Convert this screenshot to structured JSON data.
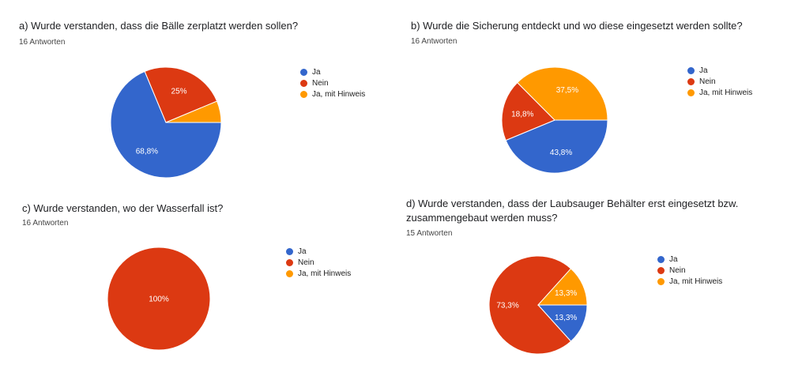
{
  "chart_data": [
    {
      "type": "pie",
      "title": "a) Wurde verstanden, dass die Bälle zerplatzt werden sollen?",
      "subtitle": "16 Antworten",
      "categories": [
        "Ja",
        "Nein",
        "Ja, mit Hinweis"
      ],
      "values": [
        68.8,
        25,
        6.3
      ],
      "labels": [
        "68,8%",
        "25%",
        ""
      ],
      "legend": "right"
    },
    {
      "type": "pie",
      "title": "b) Wurde die Sicherung entdeckt und wo diese eingesetzt werden sollte?",
      "subtitle": "16 Antworten",
      "categories": [
        "Ja",
        "Nein",
        "Ja, mit Hinweis"
      ],
      "values": [
        43.8,
        18.8,
        37.5
      ],
      "labels": [
        "43,8%",
        "18,8%",
        "37,5%"
      ],
      "legend": "right"
    },
    {
      "type": "pie",
      "title": "c) Wurde verstanden, wo der Wasserfall ist?",
      "subtitle": "16 Antworten",
      "categories": [
        "Ja",
        "Nein",
        "Ja, mit Hinweis"
      ],
      "values": [
        0,
        100,
        0
      ],
      "labels": [
        "",
        "100%",
        ""
      ],
      "legend": "right"
    },
    {
      "type": "pie",
      "title": "d) Wurde verstanden, dass der Laubsauger Behälter erst eingesetzt bzw. zusammengebaut werden muss?",
      "subtitle": "15 Antworten",
      "categories": [
        "Ja",
        "Nein",
        "Ja, mit Hinweis"
      ],
      "values": [
        13.3,
        73.3,
        13.3
      ],
      "labels": [
        "13,3%",
        "73,3%",
        "13,3%"
      ],
      "legend": "right"
    }
  ],
  "colors": [
    "#3366cc",
    "#dc3912",
    "#ff9900"
  ]
}
